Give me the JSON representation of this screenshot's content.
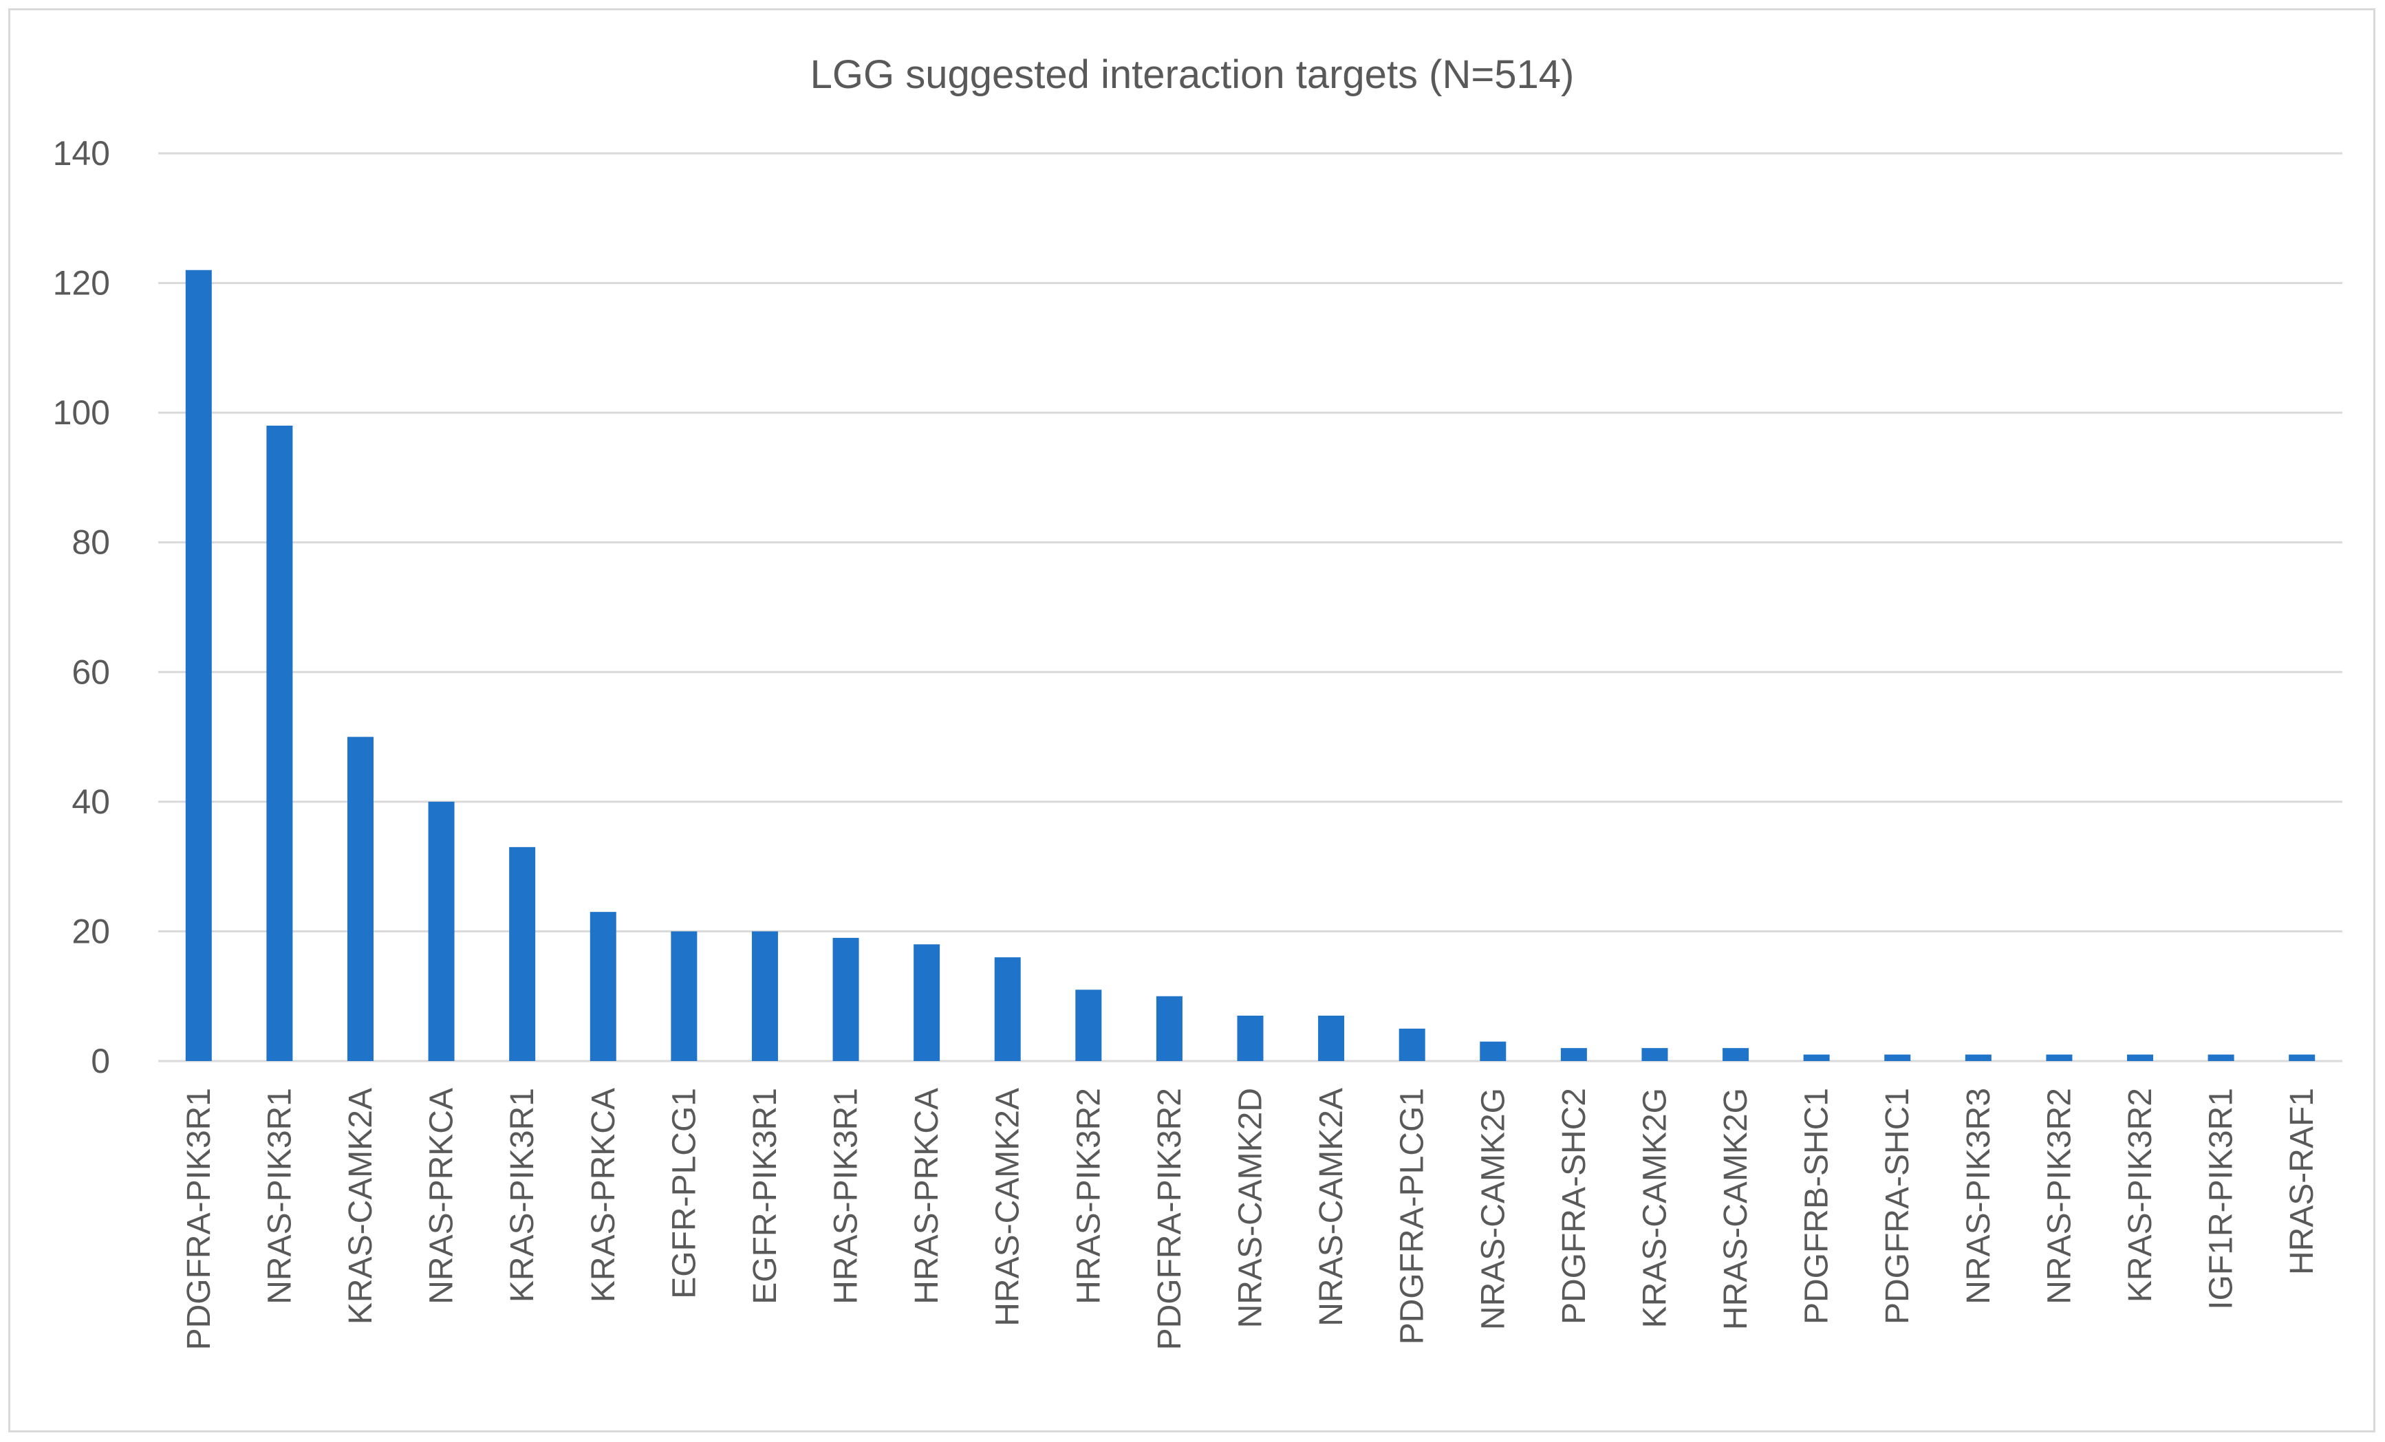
{
  "chart_data": {
    "type": "bar",
    "title": "LGG suggested interaction targets (N=514)",
    "xlabel": "",
    "ylabel": "",
    "ylim": [
      0,
      140
    ],
    "yticks": [
      0,
      20,
      40,
      60,
      80,
      100,
      120,
      140
    ],
    "grid": true,
    "legend": "none",
    "bar_color": "#1f74c9",
    "categories": [
      "PDGFRA-PIK3R1",
      "NRAS-PIK3R1",
      "KRAS-CAMK2A",
      "NRAS-PRKCA",
      "KRAS-PIK3R1",
      "KRAS-PRKCA",
      "EGFR-PLCG1",
      "EGFR-PIK3R1",
      "HRAS-PIK3R1",
      "HRAS-PRKCA",
      "HRAS-CAMK2A",
      "HRAS-PIK3R2",
      "PDGFRA-PIK3R2",
      "NRAS-CAMK2D",
      "NRAS-CAMK2A",
      "PDGFRA-PLCG1",
      "NRAS-CAMK2G",
      "PDGFRA-SHC2",
      "KRAS-CAMK2G",
      "HRAS-CAMK2G",
      "PDGFRB-SHC1",
      "PDGFRA-SHC1",
      "NRAS-PIK3R3",
      "NRAS-PIK3R2",
      "KRAS-PIK3R2",
      "IGF1R-PIK3R1",
      "HRAS-RAF1"
    ],
    "values": [
      122,
      98,
      50,
      40,
      33,
      23,
      20,
      20,
      19,
      18,
      16,
      11,
      10,
      7,
      7,
      5,
      3,
      2,
      2,
      2,
      1,
      1,
      1,
      1,
      1,
      1,
      1
    ]
  }
}
